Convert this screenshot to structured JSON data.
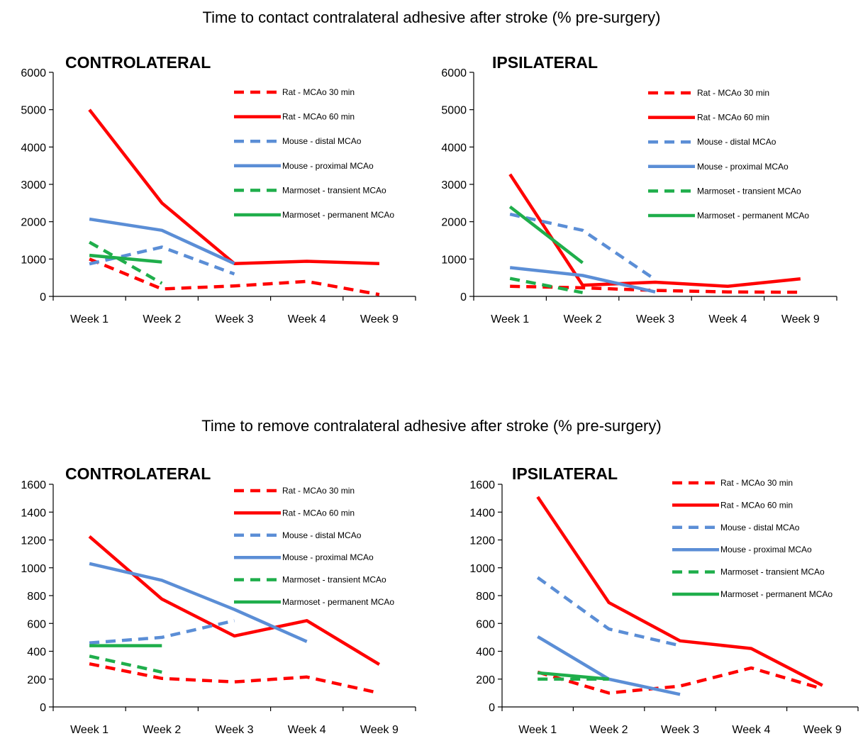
{
  "titles": {
    "top": "Time to contact contralateral adhesive after stroke (% pre-surgery)",
    "bottom": "Time to remove contralateral adhesive after stroke (% pre-surgery)"
  },
  "series_styles": [
    {
      "name": "Rat - MCAo 30 min",
      "color": "#ff0000",
      "dashed": true
    },
    {
      "name": "Rat - MCAo 60 min",
      "color": "#ff0000",
      "dashed": false
    },
    {
      "name": "Mouse - distal MCAo",
      "color": "#5b8ed6",
      "dashed": true
    },
    {
      "name": "Mouse - proximal MCAo",
      "color": "#5b8ed6",
      "dashed": false
    },
    {
      "name": "Marmoset - transient MCAo",
      "color": "#1fae4b",
      "dashed": true
    },
    {
      "name": "Marmoset - permanent MCAo",
      "color": "#1fae4b",
      "dashed": false
    }
  ],
  "chart_data": [
    {
      "type": "line",
      "title": "CONTROLATERAL",
      "group": "Time to contact contralateral adhesive after stroke (% pre-surgery)",
      "categories": [
        "Week 1",
        "Week 2",
        "Week 3",
        "Week 4",
        "Week 9"
      ],
      "ylim": [
        0,
        6000
      ],
      "yticks": [
        0,
        1000,
        2000,
        3000,
        4000,
        5000,
        6000
      ],
      "legend": "top-right",
      "series": [
        {
          "name": "Rat - MCAo 30 min",
          "values": [
            1000,
            200,
            280,
            400,
            50
          ]
        },
        {
          "name": "Rat - MCAo 60 min",
          "values": [
            5000,
            2500,
            880,
            940,
            880
          ]
        },
        {
          "name": "Mouse - distal MCAo",
          "values": [
            870,
            1320,
            600,
            null,
            null
          ]
        },
        {
          "name": "Mouse - proximal MCAo",
          "values": [
            2070,
            1770,
            880,
            null,
            null
          ]
        },
        {
          "name": "Marmoset - transient MCAo",
          "values": [
            1450,
            350,
            null,
            null,
            null
          ]
        },
        {
          "name": "Marmoset - permanent MCAo",
          "values": [
            1100,
            920,
            null,
            null,
            null
          ]
        }
      ]
    },
    {
      "type": "line",
      "title": "IPSILATERAL",
      "group": "Time to contact contralateral adhesive after stroke (% pre-surgery)",
      "categories": [
        "Week 1",
        "Week 2",
        "Week 3",
        "Week 4",
        "Week 9"
      ],
      "ylim": [
        0,
        6000
      ],
      "yticks": [
        0,
        1000,
        2000,
        3000,
        4000,
        5000,
        6000
      ],
      "legend": "top-right",
      "series": [
        {
          "name": "Rat - MCAo 30 min",
          "values": [
            270,
            230,
            160,
            120,
            110
          ]
        },
        {
          "name": "Rat - MCAo 60 min",
          "values": [
            3270,
            300,
            380,
            270,
            470
          ]
        },
        {
          "name": "Mouse - distal MCAo",
          "values": [
            2200,
            1770,
            450,
            null,
            null
          ]
        },
        {
          "name": "Mouse - proximal MCAo",
          "values": [
            770,
            560,
            120,
            null,
            null
          ]
        },
        {
          "name": "Marmoset - transient MCAo",
          "values": [
            480,
            100,
            null,
            null,
            null
          ]
        },
        {
          "name": "Marmoset - permanent MCAo",
          "values": [
            2400,
            900,
            null,
            null,
            null
          ]
        }
      ]
    },
    {
      "type": "line",
      "title": "CONTROLATERAL",
      "group": "Time to remove contralateral adhesive after stroke (% pre-surgery)",
      "categories": [
        "Week 1",
        "Week 2",
        "Week 3",
        "Week 4",
        "Week 9"
      ],
      "ylim": [
        0,
        1600
      ],
      "yticks": [
        0,
        200,
        400,
        600,
        800,
        1000,
        1200,
        1400,
        1600
      ],
      "legend": "top-right",
      "series": [
        {
          "name": "Rat - MCAo 30 min",
          "values": [
            310,
            205,
            180,
            215,
            100
          ]
        },
        {
          "name": "Rat - MCAo 60 min",
          "values": [
            1225,
            775,
            510,
            620,
            305
          ]
        },
        {
          "name": "Mouse - distal MCAo",
          "values": [
            460,
            500,
            620,
            null,
            null
          ]
        },
        {
          "name": "Mouse - proximal MCAo",
          "values": [
            1030,
            910,
            700,
            470,
            null
          ]
        },
        {
          "name": "Marmoset - transient MCAo",
          "values": [
            365,
            250,
            null,
            null,
            null
          ]
        },
        {
          "name": "Marmoset - permanent MCAo",
          "values": [
            440,
            440,
            null,
            null,
            null
          ]
        }
      ]
    },
    {
      "type": "line",
      "title": "IPSILATERAL",
      "group": "Time to remove contralateral adhesive after stroke (% pre-surgery)",
      "categories": [
        "Week 1",
        "Week 2",
        "Week 3",
        "Week 4",
        "Week 9"
      ],
      "ylim": [
        0,
        1600
      ],
      "yticks": [
        0,
        200,
        400,
        600,
        800,
        1000,
        1200,
        1400,
        1600
      ],
      "legend": "top-right",
      "series": [
        {
          "name": "Rat - MCAo 30 min",
          "values": [
            250,
            100,
            150,
            280,
            130
          ]
        },
        {
          "name": "Rat - MCAo 60 min",
          "values": [
            1510,
            750,
            475,
            420,
            155
          ]
        },
        {
          "name": "Mouse - distal MCAo",
          "values": [
            930,
            560,
            440,
            null,
            null
          ]
        },
        {
          "name": "Mouse - proximal MCAo",
          "values": [
            505,
            200,
            90,
            null,
            null
          ]
        },
        {
          "name": "Marmoset - transient MCAo",
          "values": [
            200,
            200,
            null,
            null,
            null
          ]
        },
        {
          "name": "Marmoset - permanent MCAo",
          "values": [
            245,
            200,
            null,
            null,
            null
          ]
        }
      ]
    }
  ]
}
